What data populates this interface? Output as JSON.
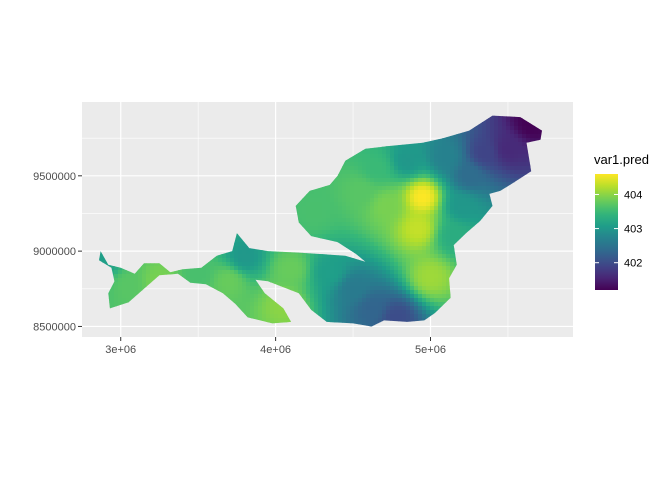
{
  "chart_data": {
    "type": "heatmap",
    "title": "",
    "xlabel": "",
    "ylabel": "",
    "xlim": [
      2750000,
      5920000
    ],
    "ylim": [
      8430000,
      9990000
    ],
    "x_ticks": [
      {
        "value": 3000000,
        "label": "3e+06"
      },
      {
        "value": 4000000,
        "label": "4e+06"
      },
      {
        "value": 5000000,
        "label": "5e+06"
      }
    ],
    "y_ticks": [
      {
        "value": 8500000,
        "label": "8500000"
      },
      {
        "value": 9000000,
        "label": "9000000"
      },
      {
        "value": 9500000,
        "label": "9500000"
      }
    ],
    "grid": true,
    "legend": {
      "title": "var1.pred",
      "position": "right",
      "range": [
        401.2,
        404.6
      ],
      "breaks": [
        {
          "value": 402,
          "label": "402"
        },
        {
          "value": 403,
          "label": "403"
        },
        {
          "value": 404,
          "label": "404"
        }
      ],
      "colormap": "viridis"
    },
    "region_outline": [
      [
        2870000,
        9000000
      ],
      [
        2920000,
        8910000
      ],
      [
        3000000,
        8890000
      ],
      [
        3090000,
        8850000
      ],
      [
        3150000,
        8920000
      ],
      [
        3250000,
        8920000
      ],
      [
        3320000,
        8860000
      ],
      [
        3400000,
        8880000
      ],
      [
        3520000,
        8890000
      ],
      [
        3620000,
        8970000
      ],
      [
        3720000,
        9000000
      ],
      [
        3750000,
        9120000
      ],
      [
        3830000,
        9020000
      ],
      [
        3950000,
        9000000
      ],
      [
        4150000,
        8990000
      ],
      [
        4450000,
        8970000
      ],
      [
        4580000,
        8930000
      ],
      [
        4520000,
        8980000
      ],
      [
        4400000,
        9060000
      ],
      [
        4230000,
        9100000
      ],
      [
        4150000,
        9190000
      ],
      [
        4130000,
        9300000
      ],
      [
        4220000,
        9400000
      ],
      [
        4350000,
        9440000
      ],
      [
        4400000,
        9500000
      ],
      [
        4450000,
        9600000
      ],
      [
        4580000,
        9680000
      ],
      [
        4750000,
        9700000
      ],
      [
        4950000,
        9720000
      ],
      [
        5080000,
        9750000
      ],
      [
        5250000,
        9800000
      ],
      [
        5400000,
        9900000
      ],
      [
        5580000,
        9890000
      ],
      [
        5720000,
        9800000
      ],
      [
        5710000,
        9740000
      ],
      [
        5620000,
        9720000
      ],
      [
        5650000,
        9530000
      ],
      [
        5530000,
        9450000
      ],
      [
        5450000,
        9400000
      ],
      [
        5380000,
        9380000
      ],
      [
        5400000,
        9300000
      ],
      [
        5320000,
        9200000
      ],
      [
        5230000,
        9120000
      ],
      [
        5150000,
        9040000
      ],
      [
        5170000,
        8910000
      ],
      [
        5120000,
        8820000
      ],
      [
        5130000,
        8690000
      ],
      [
        5030000,
        8590000
      ],
      [
        4960000,
        8540000
      ],
      [
        4850000,
        8530000
      ],
      [
        4700000,
        8540000
      ],
      [
        4620000,
        8500000
      ],
      [
        4500000,
        8520000
      ],
      [
        4330000,
        8530000
      ],
      [
        4230000,
        8610000
      ],
      [
        4150000,
        8720000
      ],
      [
        4050000,
        8760000
      ],
      [
        3950000,
        8800000
      ],
      [
        3870000,
        8810000
      ],
      [
        3930000,
        8720000
      ],
      [
        4050000,
        8620000
      ],
      [
        4100000,
        8530000
      ],
      [
        3980000,
        8520000
      ],
      [
        3820000,
        8560000
      ],
      [
        3740000,
        8650000
      ],
      [
        3660000,
        8720000
      ],
      [
        3550000,
        8780000
      ],
      [
        3450000,
        8790000
      ],
      [
        3370000,
        8850000
      ],
      [
        3250000,
        8840000
      ],
      [
        3150000,
        8750000
      ],
      [
        3050000,
        8660000
      ],
      [
        2930000,
        8620000
      ],
      [
        2920000,
        8720000
      ],
      [
        2960000,
        8800000
      ],
      [
        2940000,
        8890000
      ],
      [
        2860000,
        8940000
      ]
    ],
    "field_anchors": [
      {
        "x": 4950000,
        "y": 9360000,
        "value": 404.6
      },
      {
        "x": 4920000,
        "y": 9150000,
        "value": 404.3
      },
      {
        "x": 5000000,
        "y": 8830000,
        "value": 404.1
      },
      {
        "x": 4720000,
        "y": 9300000,
        "value": 403.9
      },
      {
        "x": 4550000,
        "y": 9400000,
        "value": 403.7
      },
      {
        "x": 4250000,
        "y": 9260000,
        "value": 403.6
      },
      {
        "x": 4850000,
        "y": 9600000,
        "value": 403.0
      },
      {
        "x": 4650000,
        "y": 9550000,
        "value": 403.5
      },
      {
        "x": 5100000,
        "y": 9620000,
        "value": 402.7
      },
      {
        "x": 5250000,
        "y": 9500000,
        "value": 402.4
      },
      {
        "x": 5350000,
        "y": 9650000,
        "value": 401.9
      },
      {
        "x": 5500000,
        "y": 9680000,
        "value": 401.6
      },
      {
        "x": 5650000,
        "y": 9850000,
        "value": 401.2
      },
      {
        "x": 5200000,
        "y": 9300000,
        "value": 403.0
      },
      {
        "x": 5150000,
        "y": 9100000,
        "value": 403.3
      },
      {
        "x": 4500000,
        "y": 8750000,
        "value": 402.6
      },
      {
        "x": 4620000,
        "y": 8620000,
        "value": 402.3
      },
      {
        "x": 4780000,
        "y": 8560000,
        "value": 402.0
      },
      {
        "x": 4350000,
        "y": 8860000,
        "value": 403.1
      },
      {
        "x": 4100000,
        "y": 8880000,
        "value": 403.8
      },
      {
        "x": 4050000,
        "y": 8640000,
        "value": 404.0
      },
      {
        "x": 3800000,
        "y": 8960000,
        "value": 403.0
      },
      {
        "x": 3700000,
        "y": 8800000,
        "value": 403.8
      },
      {
        "x": 3500000,
        "y": 8850000,
        "value": 403.6
      },
      {
        "x": 3250000,
        "y": 8800000,
        "value": 403.9
      },
      {
        "x": 3050000,
        "y": 8780000,
        "value": 403.7
      },
      {
        "x": 2900000,
        "y": 8950000,
        "value": 403.1
      }
    ]
  }
}
